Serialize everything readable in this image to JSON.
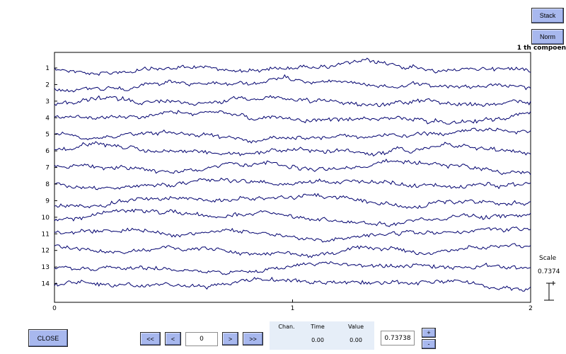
{
  "buttons": {
    "stack": "Stack",
    "norm": "Norm",
    "close": "CLOSE",
    "first": "<<",
    "prev": "<",
    "next": ">",
    "last": ">>",
    "plus": "+",
    "minus": "-"
  },
  "component_title": "1 th compoen",
  "scale": {
    "label": "Scale",
    "value": "0.7374"
  },
  "navigation": {
    "position_value": "0"
  },
  "info": {
    "chan_label": "Chan.",
    "time_label": "Time",
    "value_label": "Value",
    "time_value": "0.00",
    "value_value": "0.00"
  },
  "scale_input_value": "0.73738",
  "chart_data": {
    "type": "line",
    "title": "",
    "xlabel": "",
    "ylabel": "",
    "xlim": [
      0,
      2
    ],
    "x_ticks": [
      "0",
      "1",
      "2"
    ],
    "channels": [
      "1",
      "2",
      "3",
      "4",
      "5",
      "6",
      "7",
      "8",
      "9",
      "10",
      "11",
      "12",
      "13",
      "14"
    ],
    "line_color": "#00006e"
  }
}
